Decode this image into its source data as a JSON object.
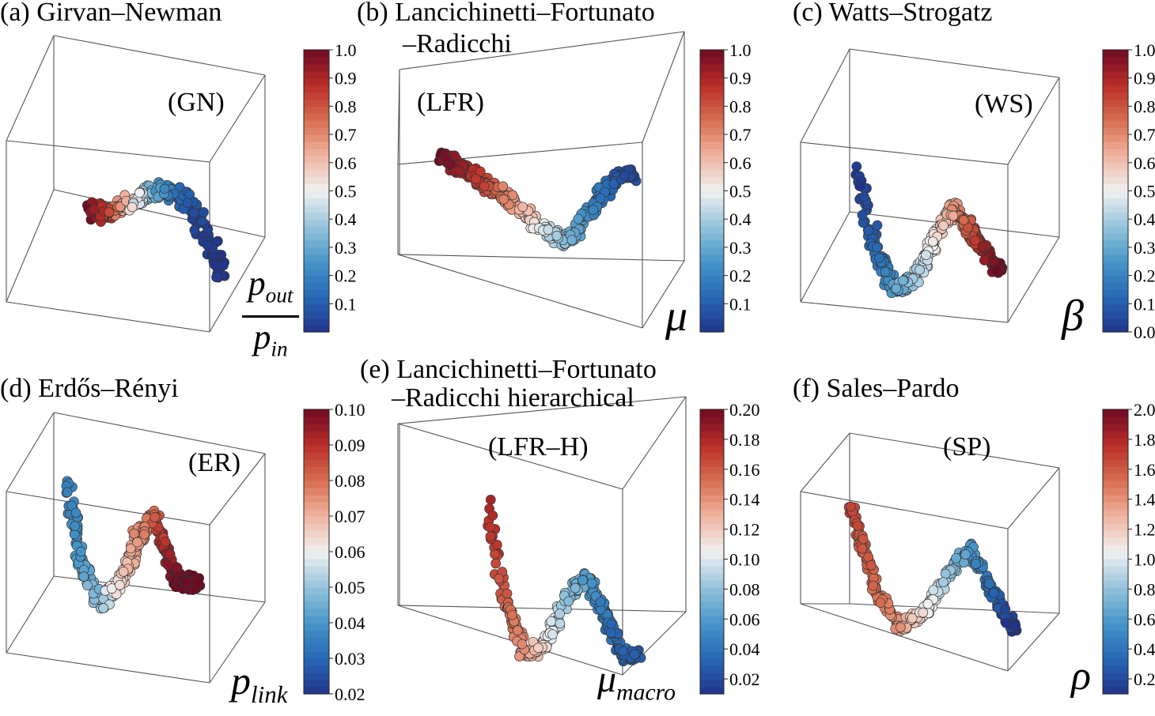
{
  "chart_data": [
    {
      "type": "scatter",
      "panel": "a",
      "title": "(a) Girvan–Newman",
      "annotation": "(GN)",
      "colorbar": {
        "label_num": "p",
        "label_num_sub": "out",
        "label_den": "p",
        "label_den_sub": "in",
        "range": [
          0.0,
          1.0
        ],
        "ticks": [
          "0.1",
          "0.2",
          "0.3",
          "0.4",
          "0.5",
          "0.6",
          "0.7",
          "0.8",
          "0.9",
          "1.0"
        ],
        "tick_values": [
          0.1,
          0.2,
          0.3,
          0.4,
          0.5,
          0.6,
          0.7,
          0.8,
          0.9,
          1.0
        ]
      },
      "curve": [
        [
          0.0,
          0.55,
          0.4,
          1.0
        ],
        [
          0.15,
          0.5,
          0.35,
          0.85
        ],
        [
          0.3,
          0.48,
          0.42,
          0.6
        ],
        [
          0.45,
          0.46,
          0.5,
          0.4
        ],
        [
          0.6,
          0.5,
          0.55,
          0.2
        ],
        [
          0.75,
          0.53,
          0.47,
          0.08
        ],
        [
          0.88,
          0.58,
          0.2,
          0.02
        ],
        [
          1.0,
          0.6,
          -0.15,
          0.0
        ]
      ],
      "points": 320
    },
    {
      "type": "scatter",
      "panel": "b",
      "title_line1": "(b) Lancichinetti–Fortunato",
      "title_line2": "–Radicchi",
      "annotation": "(LFR)",
      "colorbar": {
        "label": "μ",
        "range": [
          0.0,
          1.0
        ],
        "ticks": [
          "0.1",
          "0.2",
          "0.3",
          "0.4",
          "0.5",
          "0.6",
          "0.7",
          "0.8",
          "0.9",
          "1.0"
        ],
        "tick_values": [
          0.1,
          0.2,
          0.3,
          0.4,
          0.5,
          0.6,
          0.7,
          0.8,
          0.9,
          1.0
        ]
      },
      "curve": [
        [
          0.0,
          0.5,
          0.8,
          1.0
        ],
        [
          0.2,
          0.5,
          0.55,
          0.85
        ],
        [
          0.4,
          0.5,
          0.3,
          0.65
        ],
        [
          0.55,
          0.5,
          0.05,
          0.45
        ],
        [
          0.65,
          0.5,
          -0.05,
          0.35
        ],
        [
          0.78,
          0.5,
          0.25,
          0.2
        ],
        [
          0.88,
          0.5,
          0.55,
          0.1
        ],
        [
          0.95,
          0.5,
          0.6,
          0.05
        ]
      ],
      "points": 380
    },
    {
      "type": "scatter",
      "panel": "c",
      "title": "(c) Watts–Strogatz",
      "annotation": "(WS)",
      "colorbar": {
        "label": "β",
        "range": [
          0.0,
          1.0
        ],
        "ticks": [
          "0.0",
          "0.1",
          "0.2",
          "0.3",
          "0.4",
          "0.5",
          "0.6",
          "0.7",
          "0.8",
          "0.9",
          "1.0"
        ],
        "tick_values": [
          0.0,
          0.1,
          0.2,
          0.3,
          0.4,
          0.5,
          0.6,
          0.7,
          0.8,
          0.9,
          1.0
        ]
      },
      "curve": [
        [
          0.0,
          0.5,
          1.2,
          0.0
        ],
        [
          0.1,
          0.5,
          0.4,
          0.1
        ],
        [
          0.25,
          0.5,
          -0.15,
          0.25
        ],
        [
          0.4,
          0.5,
          0.0,
          0.4
        ],
        [
          0.55,
          0.5,
          0.5,
          0.55
        ],
        [
          0.65,
          0.5,
          0.75,
          0.68
        ],
        [
          0.8,
          0.5,
          0.45,
          0.85
        ],
        [
          0.95,
          0.5,
          0.1,
          1.0
        ]
      ],
      "points": 380
    },
    {
      "type": "scatter",
      "panel": "d",
      "title": "(d) Erdős–Rényi",
      "annotation": "(ER)",
      "colorbar": {
        "label": "p",
        "label_sub": "link",
        "range": [
          0.02,
          0.1
        ],
        "ticks": [
          "0.02",
          "0.03",
          "0.04",
          "0.05",
          "0.06",
          "0.07",
          "0.08",
          "0.09",
          "0.10"
        ],
        "tick_values": [
          0.02,
          0.03,
          0.04,
          0.05,
          0.06,
          0.07,
          0.08,
          0.09,
          0.1
        ]
      },
      "curve": [
        [
          0.0,
          0.5,
          1.2,
          0.035
        ],
        [
          0.1,
          0.5,
          0.4,
          0.04
        ],
        [
          0.25,
          0.5,
          -0.15,
          0.05
        ],
        [
          0.4,
          0.5,
          0.1,
          0.065
        ],
        [
          0.55,
          0.5,
          0.6,
          0.075
        ],
        [
          0.65,
          0.5,
          0.85,
          0.082
        ],
        [
          0.78,
          0.5,
          0.35,
          0.095
        ],
        [
          0.85,
          0.5,
          0.1,
          0.1
        ]
      ],
      "points": 380
    },
    {
      "type": "scatter",
      "panel": "e",
      "title_line1": "(e) Lancichinetti–Fortunato",
      "title_line2": "–Radicchi hierarchical",
      "annotation": "(LFR–H)",
      "colorbar": {
        "label": "μ",
        "label_sub": "macro",
        "range": [
          0.01,
          0.2
        ],
        "ticks": [
          "0.02",
          "0.04",
          "0.06",
          "0.08",
          "0.10",
          "0.12",
          "0.14",
          "0.16",
          "0.18",
          "0.20"
        ],
        "tick_values": [
          0.02,
          0.04,
          0.06,
          0.08,
          0.1,
          0.12,
          0.14,
          0.16,
          0.18,
          0.2
        ]
      },
      "curve": [
        [
          0.0,
          0.5,
          1.5,
          0.18
        ],
        [
          0.1,
          0.5,
          0.6,
          0.16
        ],
        [
          0.25,
          0.5,
          0.0,
          0.14
        ],
        [
          0.38,
          0.5,
          0.1,
          0.11
        ],
        [
          0.52,
          0.5,
          0.55,
          0.08
        ],
        [
          0.65,
          0.5,
          0.75,
          0.06
        ],
        [
          0.78,
          0.5,
          0.4,
          0.04
        ],
        [
          0.9,
          0.5,
          0.0,
          0.03
        ]
      ],
      "points": 320
    },
    {
      "type": "scatter",
      "panel": "f",
      "title": "(f) Sales–Pardo",
      "annotation": "(SP)",
      "colorbar": {
        "label": "ρ",
        "range": [
          0.1,
          2.0
        ],
        "ticks": [
          "0.2",
          "0.4",
          "0.6",
          "0.8",
          "1.0",
          "1.2",
          "1.4",
          "1.6",
          "1.8",
          "2.0"
        ],
        "tick_values": [
          0.2,
          0.4,
          0.6,
          0.8,
          1.0,
          1.2,
          1.4,
          1.6,
          1.8,
          2.0
        ]
      },
      "curve": [
        [
          0.0,
          0.5,
          1.3,
          1.7
        ],
        [
          0.15,
          0.5,
          0.4,
          1.55
        ],
        [
          0.3,
          0.5,
          0.0,
          1.4
        ],
        [
          0.45,
          0.5,
          0.15,
          1.1
        ],
        [
          0.6,
          0.5,
          0.55,
          0.8
        ],
        [
          0.72,
          0.5,
          0.8,
          0.6
        ],
        [
          0.85,
          0.5,
          0.4,
          0.35
        ],
        [
          0.98,
          0.5,
          0.0,
          0.1
        ]
      ],
      "points": 300
    }
  ]
}
